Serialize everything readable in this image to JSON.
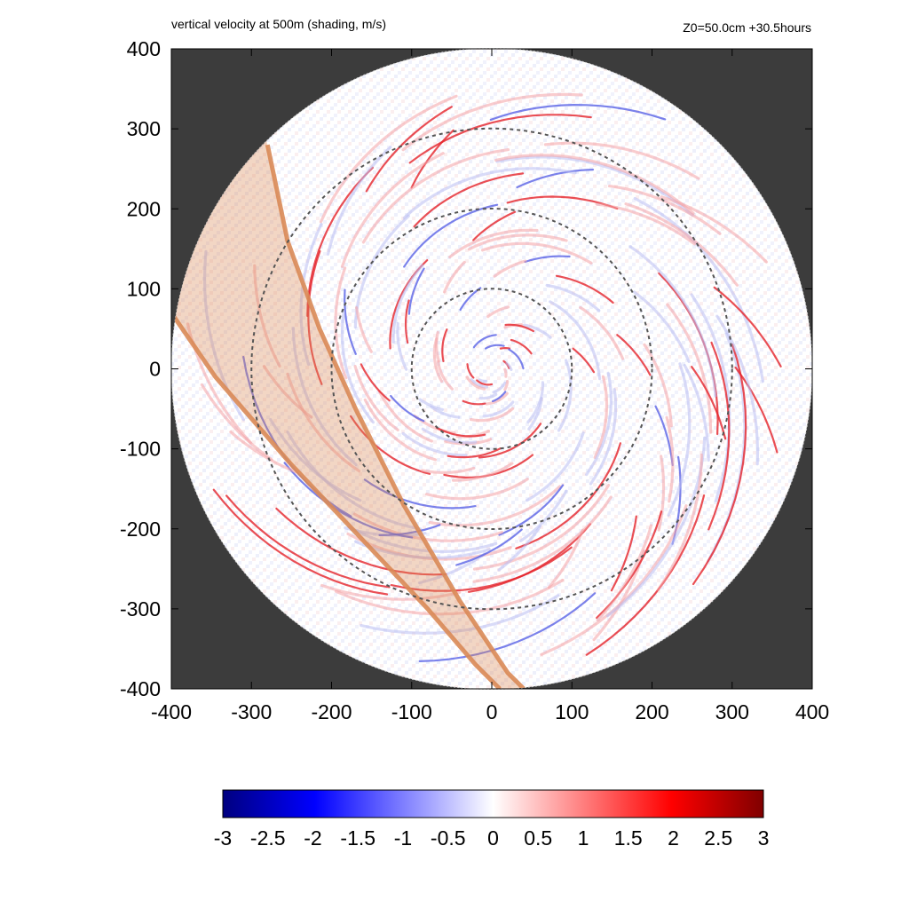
{
  "chart_data": {
    "type": "heatmap",
    "title": "vertical velocity at 500m (shading, m/s)",
    "subtitle": "Z0=50.0cm  +30.5hours",
    "xlabel": "",
    "ylabel": "",
    "xlim": [
      -400,
      400
    ],
    "ylim": [
      -400,
      400
    ],
    "x_ticks": [
      "-400",
      "-300",
      "-200",
      "-100",
      "0",
      "100",
      "200",
      "300",
      "400"
    ],
    "y_ticks": [
      "400",
      "300",
      "200",
      "100",
      "0",
      "-100",
      "-200",
      "-300",
      "-400"
    ],
    "x_tick_values": [
      -400,
      -300,
      -200,
      -100,
      0,
      100,
      200,
      300,
      400
    ],
    "y_tick_values": [
      400,
      300,
      200,
      100,
      0,
      -100,
      -200,
      -300,
      -400
    ],
    "domain_radius": 400,
    "range_rings": [
      100,
      200,
      300
    ],
    "colorbar": {
      "min": -3,
      "max": 3,
      "ticks": [
        "-3",
        "-2.5",
        "-2",
        "-1.5",
        "-1",
        "-0.5",
        "0",
        "0.5",
        "1",
        "1.5",
        "2",
        "2.5",
        "3"
      ],
      "tick_values": [
        -3,
        -2.5,
        -2,
        -1.5,
        -1,
        -0.5,
        0,
        0.5,
        1,
        1.5,
        2,
        2.5,
        3
      ],
      "colors": [
        "#000080",
        "#0000ff",
        "#ffffff",
        "#ff0000",
        "#800000"
      ]
    },
    "shaded_band": {
      "edge1": [
        [
          -280,
          280
        ],
        [
          -255,
          160
        ],
        [
          -215,
          50
        ],
        [
          -170,
          -50
        ],
        [
          -110,
          -170
        ],
        [
          -40,
          -290
        ],
        [
          20,
          -380
        ],
        [
          40,
          -400
        ]
      ],
      "edge2": [
        [
          -400,
          70
        ],
        [
          -345,
          -10
        ],
        [
          -250,
          -120
        ],
        [
          -160,
          -215
        ],
        [
          -80,
          -300
        ],
        [
          -20,
          -370
        ],
        [
          10,
          -400
        ]
      ],
      "color": "#d98a57"
    },
    "background_color": "#3c3c3c"
  }
}
